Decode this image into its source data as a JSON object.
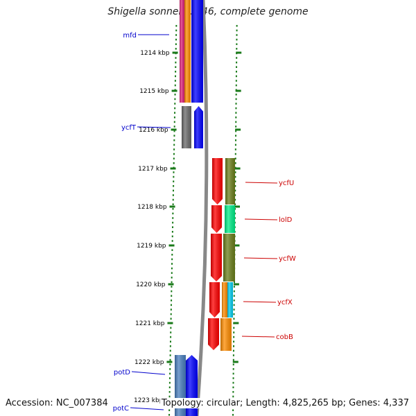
{
  "title": "Shigella sonnei Ss046, complete genome",
  "accession": "Accession: NC_007384",
  "topology": "Topology: circular; Length: 4,825,265 bp; Genes: 4,337",
  "ticks": [
    "1214 kbp",
    "1215 kbp",
    "1216 kbp",
    "1217 kbp",
    "1218 kbp",
    "1219 kbp",
    "1220 kbp",
    "1221 kbp",
    "1222 kbp",
    "1223 kbp"
  ],
  "genes_left": [
    {
      "name": "mfd",
      "color": "#0000cc"
    },
    {
      "name": "ycfT",
      "color": "#0000cc"
    },
    {
      "name": "potD",
      "color": "#0000cc"
    },
    {
      "name": "potC",
      "color": "#0000cc"
    }
  ],
  "genes_right": [
    {
      "name": "ycfU",
      "color": "#cc0000"
    },
    {
      "name": "lolD",
      "color": "#cc0000"
    },
    {
      "name": "ycfW",
      "color": "#cc0000"
    },
    {
      "name": "ycfX",
      "color": "#cc0000"
    },
    {
      "name": "cobB",
      "color": "#cc0000"
    }
  ],
  "colors": {
    "tick": "#1a7a1a",
    "backbone": "#888888",
    "forward_strand": "#0000ff",
    "reverse_strand": "#ff0000",
    "olive": "#6b7f1a",
    "spring_green": "#00ee88",
    "cyan": "#00ccee",
    "orange": "#ff8c00",
    "magenta": "#e0207a",
    "gray": "#6a6a6a",
    "steel_blue": "#4a7fbf"
  }
}
